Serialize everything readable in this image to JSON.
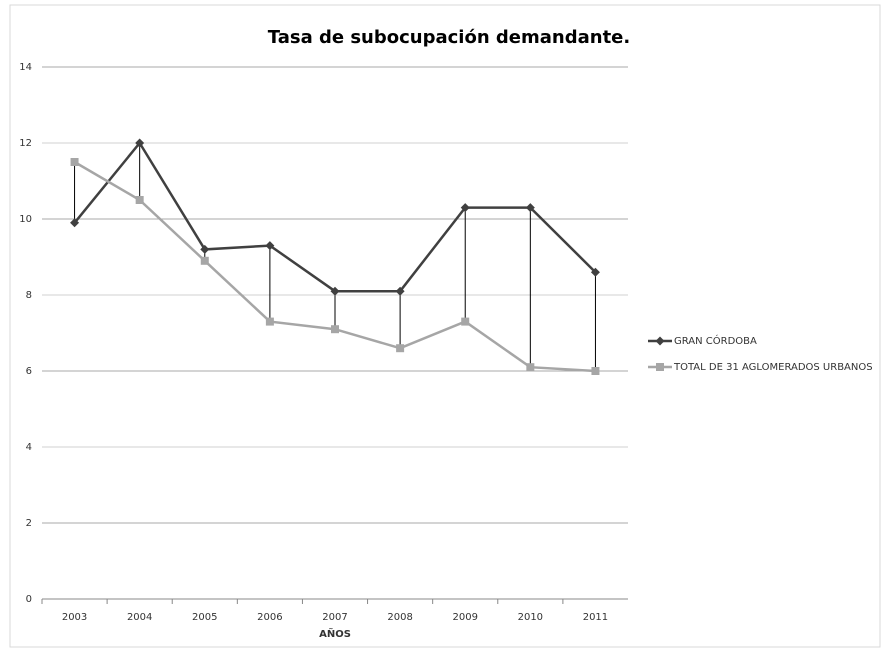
{
  "chart_data": {
    "type": "line",
    "title": "Tasa de subocupación demandante.",
    "x_label": "AÑOS",
    "categories": [
      "2003",
      "2004",
      "2005",
      "2006",
      "2007",
      "2008",
      "2009",
      "2010",
      "2011"
    ],
    "series": [
      {
        "name": "GRAN CÓRDOBA",
        "color": "#404040",
        "marker": "diamond",
        "values": [
          9.9,
          12.0,
          9.2,
          9.3,
          8.1,
          8.1,
          10.3,
          10.3,
          8.6
        ]
      },
      {
        "name": "TOTAL DE 31 AGLOMERADOS URBANOS",
        "color": "#a6a6a6",
        "marker": "square",
        "values": [
          11.5,
          10.5,
          8.9,
          7.3,
          7.1,
          6.6,
          7.3,
          6.1,
          6.0
        ]
      }
    ],
    "ylim": [
      0,
      14
    ],
    "yticks": [
      0,
      2,
      4,
      6,
      8,
      10,
      12,
      14
    ],
    "grid": true,
    "drop_lines": true,
    "legend": "right"
  }
}
